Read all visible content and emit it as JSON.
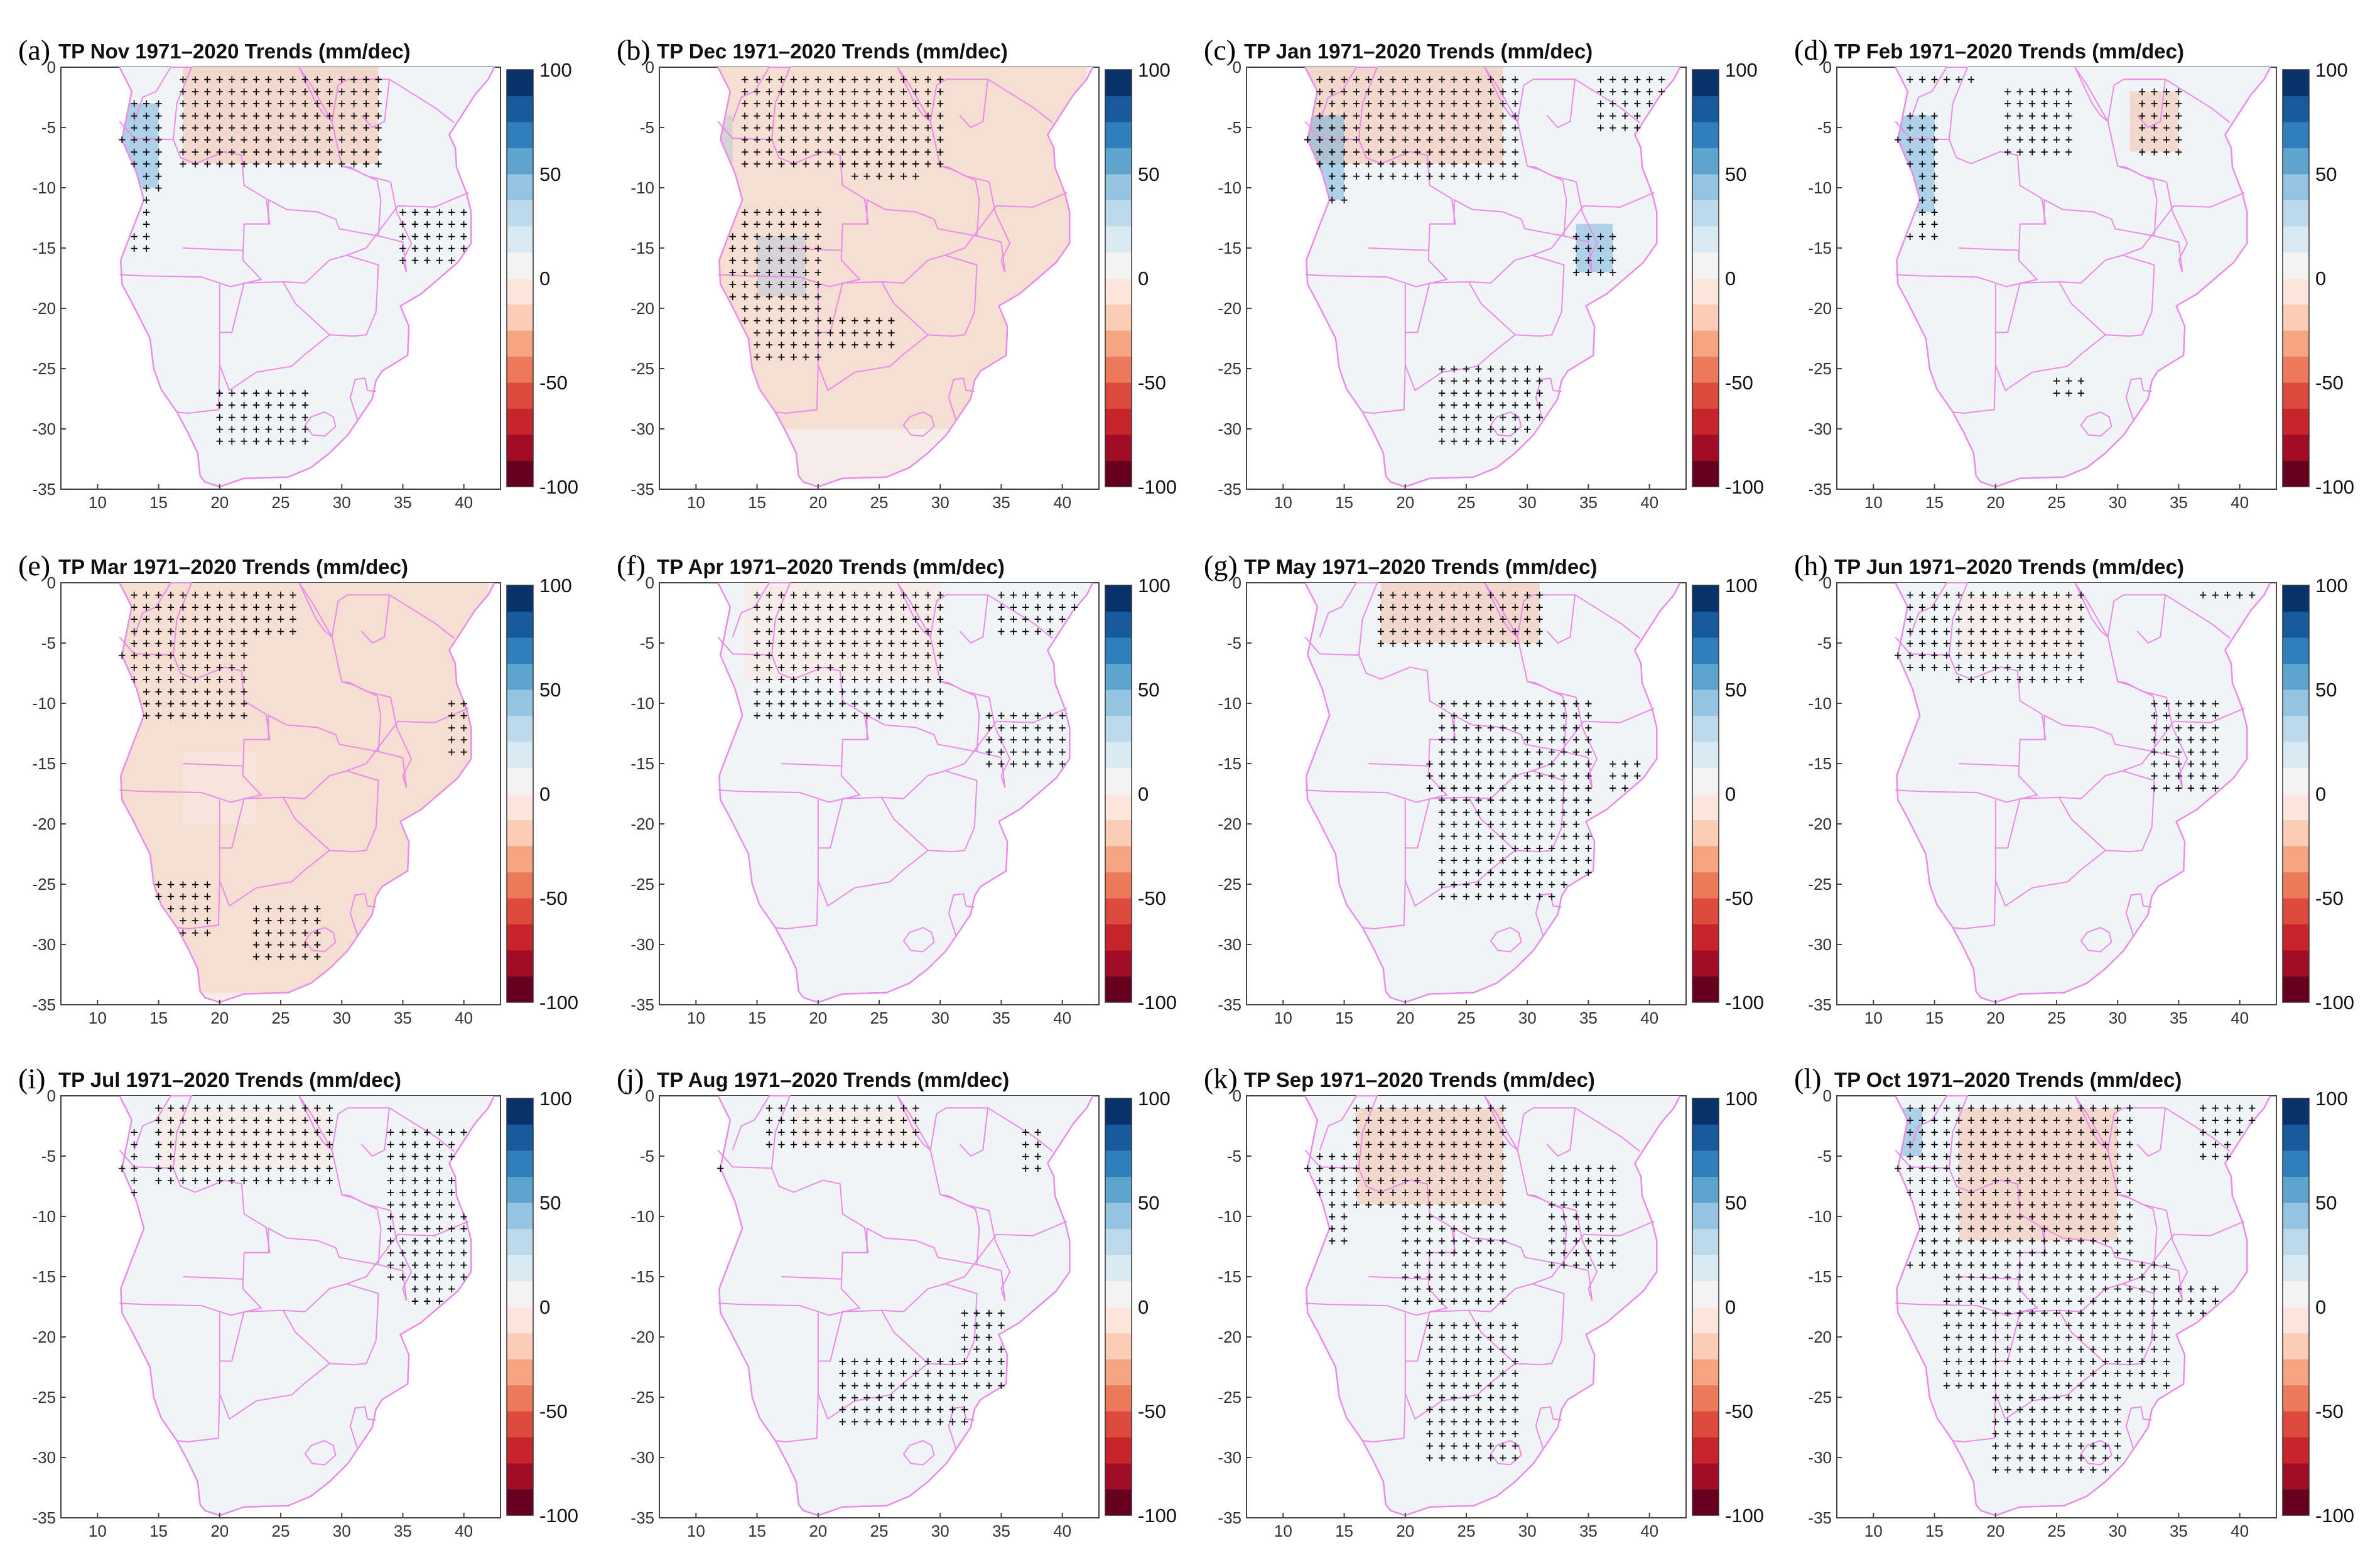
{
  "figure": {
    "variable": "TP",
    "period": "1971–2020",
    "units": "mm/dec",
    "colorbar": {
      "min": -100,
      "max": 100,
      "ticks": [
        "100",
        "50",
        "0",
        "-50",
        "-100"
      ]
    },
    "x_axis": {
      "ticks": [
        "10",
        "15",
        "20",
        "25",
        "30",
        "35",
        "40"
      ]
    },
    "y_axis": {
      "ticks": [
        "0",
        "-5",
        "-10",
        "-15",
        "-20",
        "-25",
        "-30",
        "-35"
      ]
    }
  },
  "panels": [
    {
      "label": "(a)",
      "title": "TP Nov 1971–2020 Trends (mm/dec)"
    },
    {
      "label": "(b)",
      "title": "TP Dec 1971–2020 Trends (mm/dec)"
    },
    {
      "label": "(c)",
      "title": "TP Jan 1971–2020 Trends (mm/dec)"
    },
    {
      "label": "(d)",
      "title": "TP Feb 1971–2020 Trends (mm/dec)"
    },
    {
      "label": "(e)",
      "title": "TP Mar 1971–2020 Trends (mm/dec)"
    },
    {
      "label": "(f)",
      "title": "TP Apr 1971–2020 Trends (mm/dec)"
    },
    {
      "label": "(g)",
      "title": "TP May 1971–2020 Trends (mm/dec)"
    },
    {
      "label": "(h)",
      "title": "TP Jun 1971–2020 Trends (mm/dec)"
    },
    {
      "label": "(i)",
      "title": "TP Jul 1971–2020 Trends (mm/dec)"
    },
    {
      "label": "(j)",
      "title": "TP Aug 1971–2020 Trends (mm/dec)"
    },
    {
      "label": "(k)",
      "title": "TP Sep 1971–2020 Trends (mm/dec)"
    },
    {
      "label": "(l)",
      "title": "TP Oct 1971–2020 Trends (mm/dec)"
    }
  ],
  "colors": {
    "land_neutral": "#f1f4f6",
    "land_slight_dry": "#fbe4da",
    "dry": "#f6b99c",
    "wet": "#6aaed6",
    "borders": "#e98be9",
    "colormap": [
      "#67001f",
      "#9e0d23",
      "#c7242b",
      "#dc4a3d",
      "#ec7a5b",
      "#f6a582",
      "#fbcdb6",
      "#fce6dd",
      "#f4f4f4",
      "#dbe9f3",
      "#bcdaec",
      "#93c5e0",
      "#5da4cf",
      "#2f7fbd",
      "#165a9b",
      "#08336a"
    ]
  },
  "significance_marker": "+"
}
